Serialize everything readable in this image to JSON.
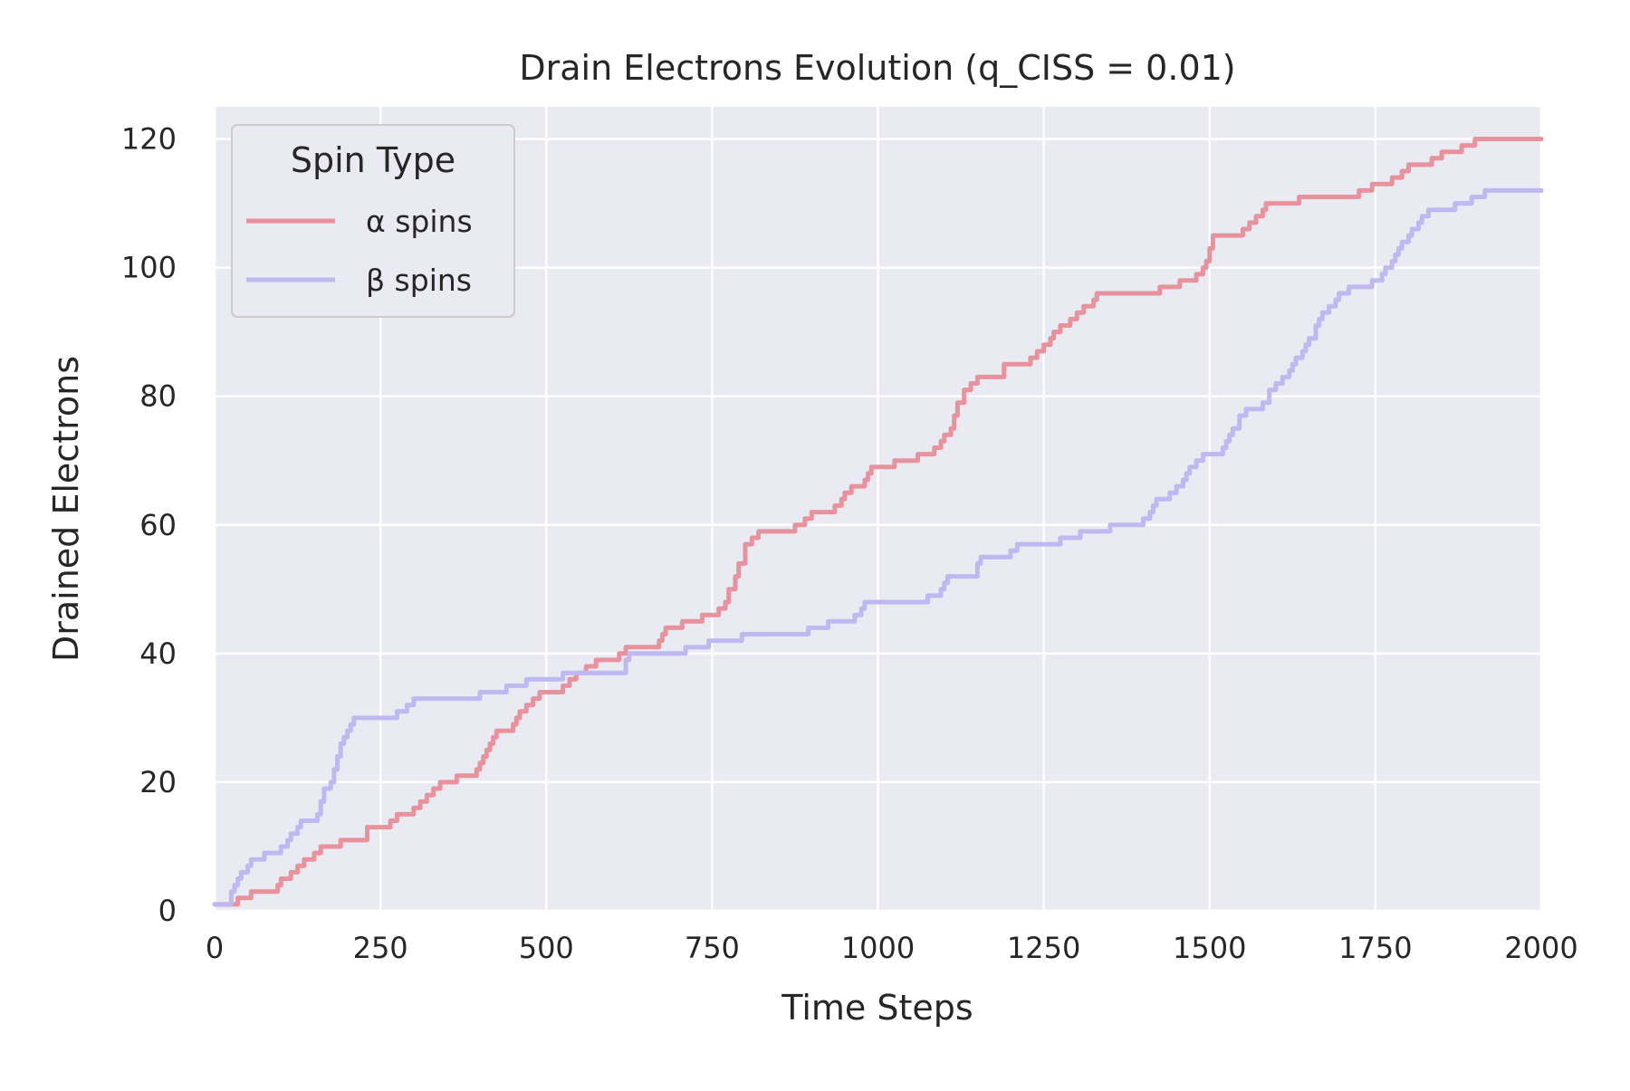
{
  "chart_data": {
    "type": "line",
    "title": "Drain Electrons Evolution (q_CISS = 0.01)",
    "xlabel": "Time Steps",
    "ylabel": "Drained Electrons",
    "xlim": [
      0,
      2000
    ],
    "ylim": [
      0,
      125
    ],
    "xticks": [
      0,
      250,
      500,
      750,
      1000,
      1250,
      1500,
      1750,
      2000
    ],
    "yticks": [
      0,
      20,
      40,
      60,
      80,
      100,
      120
    ],
    "grid": true,
    "legend": {
      "title": "Spin Type",
      "placement": "top-left"
    },
    "series": [
      {
        "name": "α spins",
        "color": "#e8929e",
        "points": [
          [
            0,
            1
          ],
          [
            30,
            1
          ],
          [
            35,
            2
          ],
          [
            55,
            3
          ],
          [
            90,
            3
          ],
          [
            95,
            4
          ],
          [
            100,
            5
          ],
          [
            115,
            6
          ],
          [
            125,
            7
          ],
          [
            135,
            8
          ],
          [
            150,
            9
          ],
          [
            160,
            10
          ],
          [
            185,
            10
          ],
          [
            190,
            11
          ],
          [
            220,
            11
          ],
          [
            230,
            13
          ],
          [
            260,
            13
          ],
          [
            265,
            14
          ],
          [
            275,
            15
          ],
          [
            295,
            15
          ],
          [
            300,
            16
          ],
          [
            310,
            17
          ],
          [
            320,
            18
          ],
          [
            330,
            19
          ],
          [
            340,
            20
          ],
          [
            360,
            20
          ],
          [
            365,
            21
          ],
          [
            390,
            21
          ],
          [
            395,
            22
          ],
          [
            400,
            23
          ],
          [
            405,
            24
          ],
          [
            410,
            25
          ],
          [
            415,
            26
          ],
          [
            420,
            27
          ],
          [
            425,
            28
          ],
          [
            445,
            28
          ],
          [
            450,
            29
          ],
          [
            455,
            30
          ],
          [
            460,
            31
          ],
          [
            470,
            32
          ],
          [
            480,
            33
          ],
          [
            490,
            34
          ],
          [
            520,
            34
          ],
          [
            525,
            35
          ],
          [
            535,
            36
          ],
          [
            545,
            37
          ],
          [
            560,
            38
          ],
          [
            575,
            39
          ],
          [
            610,
            40
          ],
          [
            620,
            41
          ],
          [
            665,
            41
          ],
          [
            670,
            42
          ],
          [
            675,
            43
          ],
          [
            680,
            44
          ],
          [
            705,
            45
          ],
          [
            730,
            45
          ],
          [
            735,
            46
          ],
          [
            755,
            46
          ],
          [
            760,
            47
          ],
          [
            770,
            48
          ],
          [
            775,
            50
          ],
          [
            785,
            52
          ],
          [
            790,
            54
          ],
          [
            800,
            57
          ],
          [
            810,
            58
          ],
          [
            820,
            59
          ],
          [
            870,
            59
          ],
          [
            875,
            60
          ],
          [
            890,
            61
          ],
          [
            900,
            62
          ],
          [
            935,
            63
          ],
          [
            945,
            64
          ],
          [
            950,
            65
          ],
          [
            960,
            66
          ],
          [
            980,
            67
          ],
          [
            985,
            68
          ],
          [
            990,
            69
          ],
          [
            1020,
            69
          ],
          [
            1025,
            70
          ],
          [
            1055,
            70
          ],
          [
            1060,
            71
          ],
          [
            1080,
            71
          ],
          [
            1085,
            72
          ],
          [
            1095,
            73
          ],
          [
            1100,
            74
          ],
          [
            1110,
            75
          ],
          [
            1115,
            77
          ],
          [
            1120,
            79
          ],
          [
            1130,
            81
          ],
          [
            1140,
            82
          ],
          [
            1150,
            83
          ],
          [
            1185,
            83
          ],
          [
            1190,
            85
          ],
          [
            1225,
            85
          ],
          [
            1230,
            86
          ],
          [
            1240,
            87
          ],
          [
            1250,
            88
          ],
          [
            1260,
            89
          ],
          [
            1265,
            90
          ],
          [
            1275,
            91
          ],
          [
            1290,
            92
          ],
          [
            1300,
            93
          ],
          [
            1310,
            94
          ],
          [
            1325,
            95
          ],
          [
            1330,
            96
          ],
          [
            1420,
            96
          ],
          [
            1425,
            97
          ],
          [
            1450,
            97
          ],
          [
            1455,
            98
          ],
          [
            1480,
            99
          ],
          [
            1490,
            100
          ],
          [
            1495,
            101
          ],
          [
            1500,
            103
          ],
          [
            1505,
            105
          ],
          [
            1545,
            105
          ],
          [
            1550,
            106
          ],
          [
            1560,
            107
          ],
          [
            1570,
            108
          ],
          [
            1580,
            109
          ],
          [
            1585,
            110
          ],
          [
            1630,
            110
          ],
          [
            1635,
            111
          ],
          [
            1720,
            111
          ],
          [
            1725,
            112
          ],
          [
            1745,
            113
          ],
          [
            1775,
            114
          ],
          [
            1790,
            115
          ],
          [
            1800,
            116
          ],
          [
            1835,
            117
          ],
          [
            1850,
            118
          ],
          [
            1880,
            119
          ],
          [
            1900,
            120
          ],
          [
            2000,
            120
          ]
        ]
      },
      {
        "name": "β spins",
        "color": "#c0b8f0",
        "points": [
          [
            0,
            1
          ],
          [
            20,
            1
          ],
          [
            25,
            3
          ],
          [
            30,
            4
          ],
          [
            35,
            5
          ],
          [
            40,
            6
          ],
          [
            50,
            7
          ],
          [
            55,
            8
          ],
          [
            70,
            8
          ],
          [
            75,
            9
          ],
          [
            95,
            9
          ],
          [
            100,
            10
          ],
          [
            110,
            11
          ],
          [
            115,
            12
          ],
          [
            125,
            13
          ],
          [
            130,
            14
          ],
          [
            150,
            14
          ],
          [
            155,
            15
          ],
          [
            160,
            17
          ],
          [
            165,
            19
          ],
          [
            175,
            20
          ],
          [
            180,
            22
          ],
          [
            185,
            24
          ],
          [
            190,
            26
          ],
          [
            195,
            27
          ],
          [
            200,
            28
          ],
          [
            205,
            29
          ],
          [
            210,
            30
          ],
          [
            270,
            30
          ],
          [
            275,
            31
          ],
          [
            290,
            32
          ],
          [
            300,
            33
          ],
          [
            395,
            33
          ],
          [
            400,
            34
          ],
          [
            430,
            34
          ],
          [
            440,
            35
          ],
          [
            465,
            35
          ],
          [
            470,
            36
          ],
          [
            500,
            36
          ],
          [
            525,
            37
          ],
          [
            615,
            37
          ],
          [
            620,
            39
          ],
          [
            625,
            40
          ],
          [
            705,
            40
          ],
          [
            710,
            41
          ],
          [
            740,
            41
          ],
          [
            745,
            42
          ],
          [
            790,
            42
          ],
          [
            795,
            43
          ],
          [
            890,
            43
          ],
          [
            895,
            44
          ],
          [
            920,
            44
          ],
          [
            925,
            45
          ],
          [
            960,
            45
          ],
          [
            965,
            46
          ],
          [
            975,
            47
          ],
          [
            980,
            48
          ],
          [
            1070,
            48
          ],
          [
            1075,
            49
          ],
          [
            1090,
            49
          ],
          [
            1095,
            50
          ],
          [
            1100,
            51
          ],
          [
            1105,
            52
          ],
          [
            1145,
            52
          ],
          [
            1150,
            54
          ],
          [
            1155,
            55
          ],
          [
            1195,
            55
          ],
          [
            1200,
            56
          ],
          [
            1210,
            57
          ],
          [
            1270,
            57
          ],
          [
            1275,
            58
          ],
          [
            1300,
            58
          ],
          [
            1305,
            59
          ],
          [
            1345,
            59
          ],
          [
            1350,
            60
          ],
          [
            1395,
            60
          ],
          [
            1400,
            61
          ],
          [
            1410,
            62
          ],
          [
            1415,
            63
          ],
          [
            1420,
            64
          ],
          [
            1435,
            64
          ],
          [
            1440,
            65
          ],
          [
            1450,
            66
          ],
          [
            1460,
            67
          ],
          [
            1465,
            68
          ],
          [
            1470,
            69
          ],
          [
            1480,
            70
          ],
          [
            1490,
            71
          ],
          [
            1515,
            71
          ],
          [
            1520,
            72
          ],
          [
            1525,
            73
          ],
          [
            1530,
            74
          ],
          [
            1535,
            75
          ],
          [
            1545,
            77
          ],
          [
            1555,
            78
          ],
          [
            1575,
            78
          ],
          [
            1580,
            79
          ],
          [
            1590,
            81
          ],
          [
            1600,
            82
          ],
          [
            1610,
            83
          ],
          [
            1620,
            84
          ],
          [
            1625,
            85
          ],
          [
            1630,
            86
          ],
          [
            1640,
            87
          ],
          [
            1645,
            88
          ],
          [
            1650,
            89
          ],
          [
            1660,
            91
          ],
          [
            1665,
            92
          ],
          [
            1670,
            93
          ],
          [
            1680,
            94
          ],
          [
            1690,
            95
          ],
          [
            1695,
            96
          ],
          [
            1710,
            97
          ],
          [
            1740,
            97
          ],
          [
            1745,
            98
          ],
          [
            1760,
            99
          ],
          [
            1765,
            100
          ],
          [
            1775,
            101
          ],
          [
            1780,
            102
          ],
          [
            1785,
            103
          ],
          [
            1790,
            104
          ],
          [
            1800,
            105
          ],
          [
            1805,
            106
          ],
          [
            1815,
            107
          ],
          [
            1820,
            108
          ],
          [
            1830,
            109
          ],
          [
            1865,
            109
          ],
          [
            1870,
            110
          ],
          [
            1890,
            110
          ],
          [
            1895,
            111
          ],
          [
            1910,
            111
          ],
          [
            1915,
            112
          ],
          [
            2000,
            112
          ]
        ]
      }
    ]
  }
}
